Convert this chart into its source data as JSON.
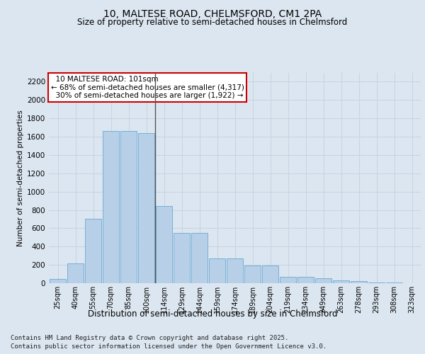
{
  "title1": "10, MALTESE ROAD, CHELMSFORD, CM1 2PA",
  "title2": "Size of property relative to semi-detached houses in Chelmsford",
  "xlabel": "Distribution of semi-detached houses by size in Chelmsford",
  "ylabel": "Number of semi-detached properties",
  "categories": [
    "25sqm",
    "40sqm",
    "55sqm",
    "70sqm",
    "85sqm",
    "100sqm",
    "114sqm",
    "129sqm",
    "144sqm",
    "159sqm",
    "174sqm",
    "189sqm",
    "204sqm",
    "219sqm",
    "234sqm",
    "249sqm",
    "263sqm",
    "278sqm",
    "293sqm",
    "308sqm",
    "323sqm"
  ],
  "values": [
    50,
    220,
    700,
    1660,
    1660,
    1640,
    840,
    550,
    550,
    270,
    270,
    190,
    190,
    70,
    70,
    55,
    30,
    20,
    8,
    8,
    3
  ],
  "bar_color": "#b8cfe8",
  "bar_edge_color": "#6aaad4",
  "highlight_index": 5,
  "highlight_line_color": "#555555",
  "annotation_text": "  10 MALTESE ROAD: 101sqm\n← 68% of semi-detached houses are smaller (4,317)\n  30% of semi-detached houses are larger (1,922) →",
  "annotation_box_color": "#ffffff",
  "annotation_box_edge_color": "#cc0000",
  "ylim": [
    0,
    2300
  ],
  "yticks": [
    0,
    200,
    400,
    600,
    800,
    1000,
    1200,
    1400,
    1600,
    1800,
    2000,
    2200
  ],
  "grid_color": "#c8d4e4",
  "background_color": "#dce6f0",
  "fig_background": "#dce6f0",
  "footer_line1": "Contains HM Land Registry data © Crown copyright and database right 2025.",
  "footer_line2": "Contains public sector information licensed under the Open Government Licence v3.0."
}
